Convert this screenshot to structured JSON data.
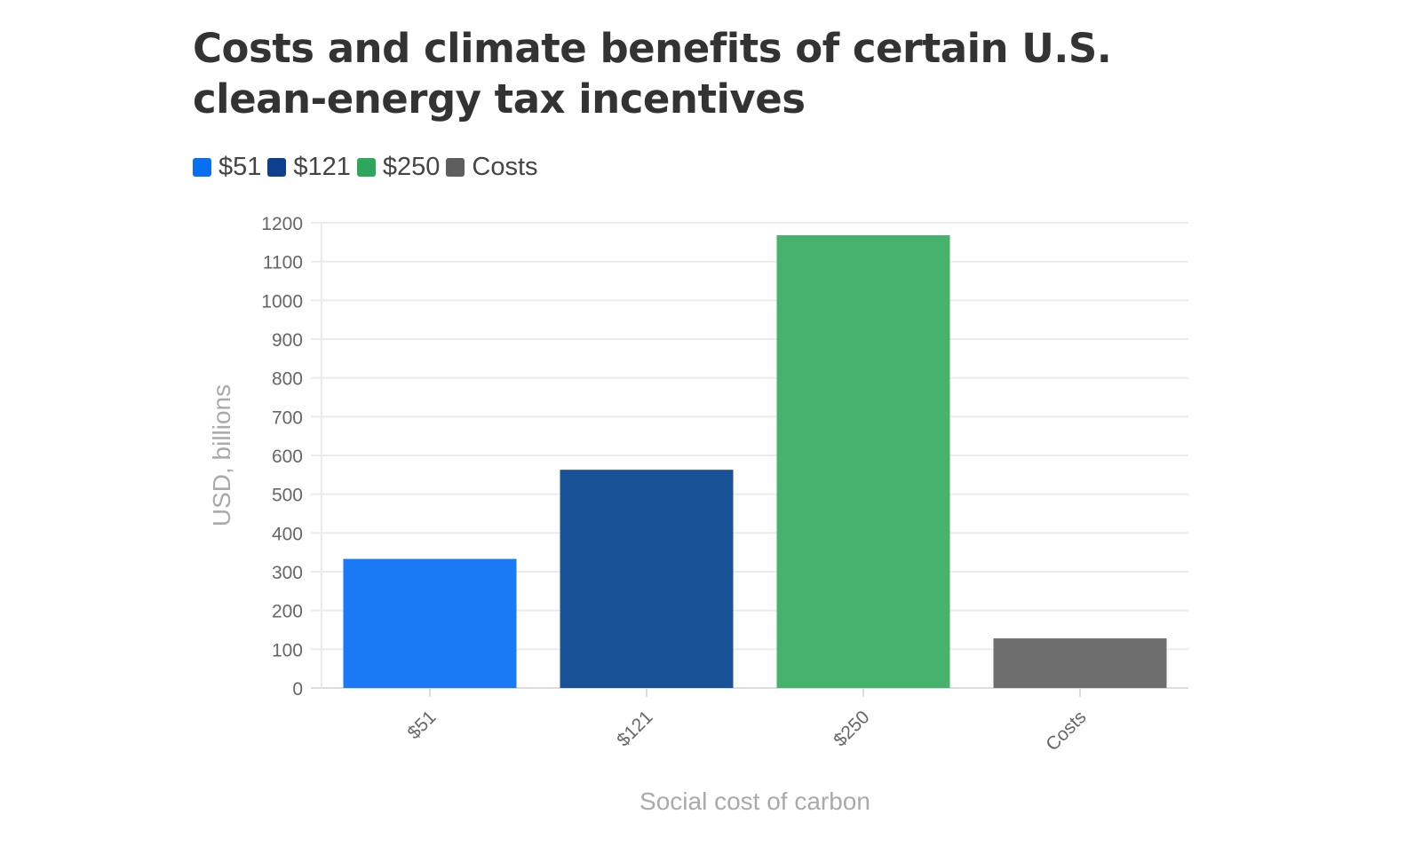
{
  "chart_data": {
    "type": "bar",
    "title": "Costs and climate benefits of certain U.S. clean-energy tax incentives",
    "categories": [
      "$51",
      "$121",
      "$250",
      "Costs"
    ],
    "values": [
      333,
      563,
      1168,
      128
    ],
    "colors": [
      "#1a7af5",
      "#1a5298",
      "#47b26c",
      "#6e6e6e"
    ],
    "legend": [
      {
        "label": "$51",
        "color": "#0a6ef0"
      },
      {
        "label": "$121",
        "color": "#0d3f8f"
      },
      {
        "label": "$250",
        "color": "#2ea65c"
      },
      {
        "label": "Costs",
        "color": "#5e5e5e"
      }
    ],
    "xlabel": "Social cost of carbon",
    "ylabel": "USD, billions",
    "ylim": [
      0,
      1200
    ],
    "yticks": [
      0,
      100,
      200,
      300,
      400,
      500,
      600,
      700,
      800,
      900,
      1000,
      1100,
      1200
    ],
    "grid": true,
    "legend_position": "top-left"
  }
}
